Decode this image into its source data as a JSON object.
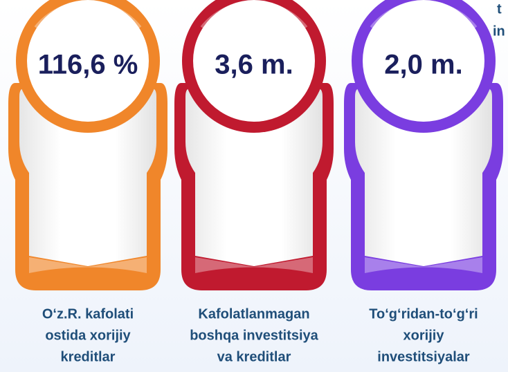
{
  "corner_text": [
    "t",
    "in"
  ],
  "cards": [
    {
      "value": "116,6 %",
      "label": [
        "O‘z.R. kafolati",
        "ostida xorijiy",
        "kreditlar"
      ]
    },
    {
      "value": "3,6  m.",
      "label": [
        "Kafolatlanmagan",
        "boshqa investitsiya",
        "va kreditlar"
      ]
    },
    {
      "value": "2,0 m.",
      "label": [
        "To‘g‘ridan-to‘g‘ri",
        "xorijiy",
        "investitsiyalar"
      ]
    }
  ]
}
